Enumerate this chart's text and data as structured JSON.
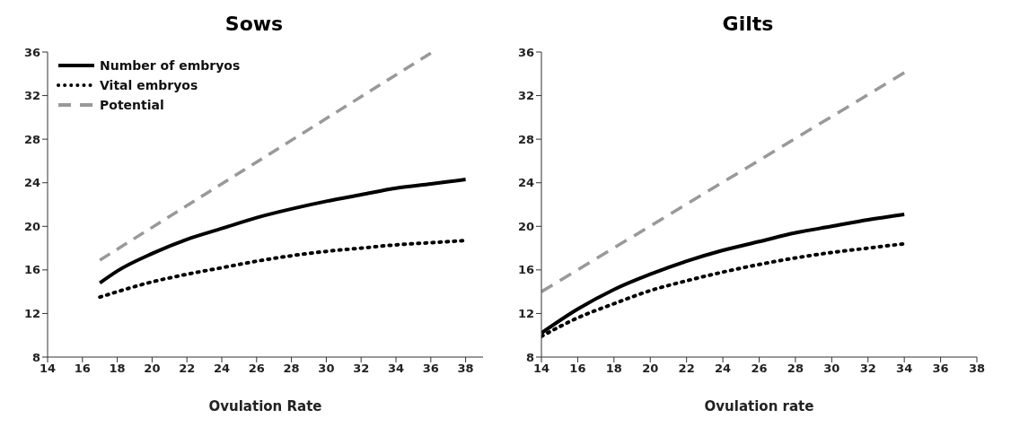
{
  "chart_data": [
    {
      "type": "line",
      "title": "Sows",
      "xlabel": "Ovulation Rate",
      "xlim": [
        14,
        39
      ],
      "xticks": [
        14,
        16,
        18,
        20,
        22,
        24,
        26,
        28,
        30,
        32,
        34,
        36,
        38
      ],
      "ylim": [
        8,
        36
      ],
      "yticks": [
        8,
        12,
        16,
        20,
        24,
        28,
        32,
        36
      ],
      "grid": false,
      "legend": "top left",
      "marker": "none",
      "series": [
        {
          "name": "Number of embryos",
          "color": "#000000",
          "line_style": "solid",
          "x": [
            17,
            18,
            20,
            22,
            24,
            26,
            28,
            30,
            32,
            34,
            36,
            38
          ],
          "values": [
            14.8,
            15.9,
            17.5,
            18.8,
            19.8,
            20.8,
            21.6,
            22.3,
            22.9,
            23.5,
            23.9,
            24.3
          ]
        },
        {
          "name": "Vital embryos",
          "color": "#000000",
          "line_style": "dotted",
          "x": [
            17,
            20,
            22,
            24,
            26,
            28,
            30,
            32,
            34,
            36,
            38
          ],
          "values": [
            13.5,
            14.9,
            15.6,
            16.2,
            16.8,
            17.3,
            17.7,
            18.0,
            18.3,
            18.5,
            18.7
          ]
        },
        {
          "name": "Potential",
          "color": "#999999",
          "line_style": "dashed",
          "x": [
            17,
            36
          ],
          "values": [
            16.9,
            35.9
          ]
        }
      ]
    },
    {
      "type": "line",
      "title": "Gilts",
      "xlabel": "Ovulation rate",
      "xlim": [
        14,
        38
      ],
      "xticks": [
        14,
        16,
        18,
        20,
        22,
        24,
        26,
        28,
        30,
        32,
        34,
        36,
        38
      ],
      "ylim": [
        8,
        36
      ],
      "yticks": [
        8,
        12,
        16,
        20,
        24,
        28,
        32,
        36
      ],
      "grid": false,
      "legend": false,
      "marker": "none",
      "series": [
        {
          "color": "#000000",
          "line_style": "solid",
          "x": [
            14,
            16,
            18,
            20,
            22,
            24,
            26,
            28,
            30,
            32,
            34
          ],
          "values": [
            10.2,
            12.4,
            14.2,
            15.6,
            16.8,
            17.8,
            18.6,
            19.4,
            20.0,
            20.6,
            21.1
          ]
        },
        {
          "color": "#000000",
          "line_style": "dotted",
          "x": [
            14,
            16,
            18,
            20,
            22,
            24,
            26,
            28,
            30,
            32,
            34
          ],
          "values": [
            9.9,
            11.6,
            12.9,
            14.1,
            15.0,
            15.8,
            16.5,
            17.1,
            17.6,
            18.0,
            18.4
          ]
        },
        {
          "color": "#999999",
          "line_style": "dashed",
          "x": [
            14,
            34
          ],
          "values": [
            14.0,
            34.1
          ]
        }
      ]
    }
  ]
}
